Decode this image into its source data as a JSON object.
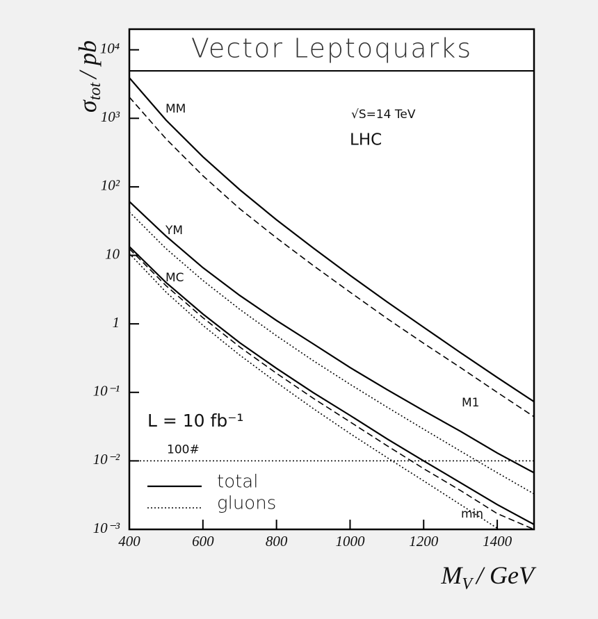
{
  "chart_data": {
    "type": "line",
    "title": "Vector Leptoquarks",
    "x_label": {
      "symbol": "M",
      "subscript": "V",
      "unit": "/ GeV"
    },
    "y_label": {
      "symbol": "σ",
      "subscript": "tot",
      "unit": "/ pb"
    },
    "log_y": true,
    "xlim": [
      400,
      1500
    ],
    "ylim": [
      0.001,
      20000
    ],
    "xticks": [
      400,
      600,
      800,
      1000,
      1200,
      1400
    ],
    "yticks": [
      {
        "value": 10000,
        "label": "10⁴"
      },
      {
        "value": 1000,
        "label": "10³"
      },
      {
        "value": 100,
        "label": "10²"
      },
      10,
      1,
      {
        "value": 0.1,
        "label": "10⁻¹"
      },
      {
        "value": 0.01,
        "label": "10⁻²"
      },
      {
        "value": 0.001,
        "label": "10⁻³"
      }
    ],
    "x": [
      400,
      500,
      600,
      700,
      800,
      900,
      1000,
      1100,
      1200,
      1300,
      1400,
      1500
    ],
    "series": [
      {
        "style": "solid",
        "color": "#000000",
        "values": [
          3900,
          940,
          274,
          91,
          33,
          12.8,
          5.1,
          2.1,
          0.89,
          0.38,
          0.165,
          0.073
        ]
      },
      {
        "style": "dashed",
        "color": "#000000",
        "values": [
          2040,
          500,
          145,
          48,
          18,
          7.1,
          2.9,
          1.2,
          0.52,
          0.23,
          0.1,
          0.044
        ]
      },
      {
        "style": "solid",
        "color": "#000000",
        "values": [
          61,
          19,
          6.6,
          2.6,
          1.12,
          0.51,
          0.23,
          0.11,
          0.054,
          0.027,
          0.013,
          0.0067
        ]
      },
      {
        "style": "dotted",
        "color": "#000000",
        "values": [
          43,
          12.5,
          4.3,
          1.63,
          0.67,
          0.29,
          0.131,
          0.061,
          0.029,
          0.0139,
          0.0067,
          0.0033
        ]
      },
      {
        "style": "solid",
        "color": "#000000",
        "values": [
          13.4,
          4.0,
          1.39,
          0.53,
          0.224,
          0.099,
          0.046,
          0.021,
          0.01,
          0.0048,
          0.0023,
          0.00118
        ]
      },
      {
        "style": "dashed",
        "color": "#000000",
        "values": [
          12.5,
          3.6,
          1.23,
          0.46,
          0.19,
          0.082,
          0.037,
          0.0167,
          0.0077,
          0.0037,
          0.0017,
          0.001
        ]
      },
      {
        "style": "dotted",
        "color": "#000000",
        "values": [
          10.6,
          2.9,
          0.95,
          0.35,
          0.14,
          0.058,
          0.025,
          0.0112,
          0.0051,
          0.0023,
          0.00104,
          null
        ]
      }
    ],
    "reference_line": {
      "value": 0.01,
      "label": "100#",
      "style": "dotted"
    },
    "legend": [
      {
        "label": "total",
        "style": "solid"
      },
      {
        "label": "gluons",
        "style": "dotted"
      }
    ],
    "annotations": [
      "MM",
      "YM",
      "MC",
      "M1",
      "min",
      "√S=14 TeV",
      "LHC",
      "L = 10 fb⁻¹"
    ]
  }
}
